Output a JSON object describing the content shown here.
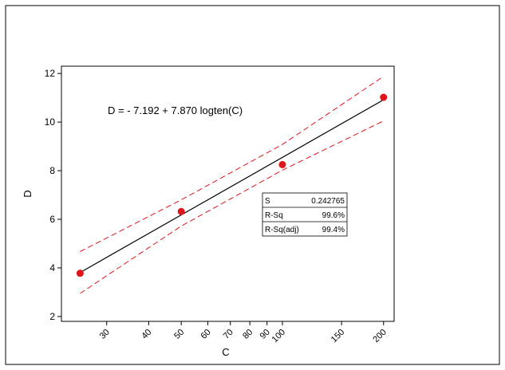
{
  "chart_data": {
    "type": "scatter",
    "title": "",
    "xlabel": "C",
    "ylabel": "D",
    "x_scale": "log10",
    "xlim": [
      22,
      215
    ],
    "ylim": [
      1.8,
      12.3
    ],
    "x_ticks": [
      30,
      40,
      50,
      60,
      70,
      80,
      90,
      100,
      150,
      200
    ],
    "y_ticks": [
      2,
      4,
      6,
      8,
      10,
      12
    ],
    "equation_label": "D =  - 7.192 + 7.870 logten(C)",
    "regression": {
      "intercept": -7.192,
      "slope": 7.87
    },
    "series": [
      {
        "type": "scatter",
        "x": [
          25,
          50,
          100,
          200
        ],
        "y": [
          3.78,
          6.32,
          8.25,
          11.02
        ]
      }
    ],
    "confidence_band": {
      "x": [
        25,
        50,
        100,
        200
      ],
      "upper": [
        4.67,
        6.8,
        9.08,
        11.88
      ],
      "lower": [
        2.95,
        5.72,
        8.02,
        10.05
      ]
    },
    "stats_table": [
      {
        "label": "S",
        "value": "0.242765"
      },
      {
        "label": "R-Sq",
        "value": "99.6%"
      },
      {
        "label": "R-Sq(adj)",
        "value": "99.4%"
      }
    ],
    "colors": {
      "points": "#e0141b",
      "fit_line": "#000000",
      "confidence": "#e0141b",
      "background": "#ffffff"
    }
  }
}
